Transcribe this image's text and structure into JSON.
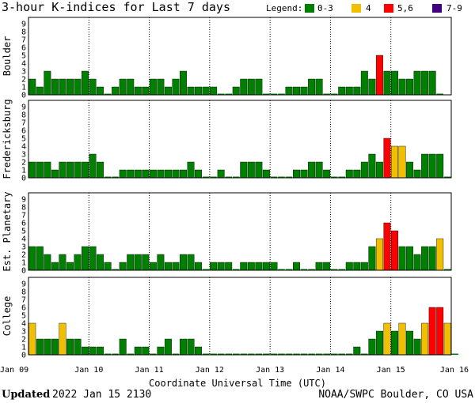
{
  "chart_data": {
    "type": "bar",
    "title": "3-hour K-indices for Last 7 days",
    "legend": {
      "label": "Legend:",
      "entries": [
        {
          "label": "0-3",
          "color": "#008000"
        },
        {
          "label": "4",
          "color": "#f0c000"
        },
        {
          "label": "5,6",
          "color": "#ff0000"
        },
        {
          "label": "7-9",
          "color": "#400080"
        }
      ]
    },
    "ylim": [
      0,
      9
    ],
    "yticks": [
      0,
      1,
      2,
      3,
      4,
      5,
      6,
      7,
      8,
      9
    ],
    "xticks": [
      "Jan 09",
      "Jan 10",
      "Jan 11",
      "Jan 12",
      "Jan 13",
      "Jan 14",
      "Jan 15",
      "Jan 16"
    ],
    "xlabel": "Coordinate Universal Time (UTC)",
    "intervals_per_day": 8,
    "grid": "dotted-vertical",
    "panels": [
      {
        "name": "Boulder",
        "values": [
          2,
          1,
          3,
          2,
          2,
          2,
          2,
          3,
          2,
          1,
          0,
          1,
          2,
          2,
          1,
          1,
          2,
          2,
          1,
          2,
          3,
          1,
          1,
          1,
          1,
          0,
          0,
          1,
          2,
          2,
          2,
          0,
          0,
          0,
          1,
          1,
          1,
          2,
          2,
          0,
          0,
          1,
          1,
          1,
          3,
          2,
          5,
          3,
          3,
          2,
          2,
          3,
          3,
          3,
          0
        ]
      },
      {
        "name": "Fredericksburg",
        "values": [
          2,
          2,
          2,
          1,
          2,
          2,
          2,
          2,
          3,
          2,
          0,
          0,
          1,
          1,
          1,
          1,
          1,
          1,
          1,
          1,
          1,
          2,
          1,
          0,
          0,
          1,
          0,
          0,
          2,
          2,
          2,
          1,
          0,
          0,
          0,
          1,
          1,
          2,
          2,
          1,
          0,
          0,
          1,
          1,
          2,
          3,
          2,
          5,
          4,
          4,
          2,
          1,
          3,
          3,
          3,
          0
        ]
      },
      {
        "name": "Est. Planetary",
        "values": [
          3,
          3,
          2,
          1,
          2,
          1,
          2,
          3,
          3,
          2,
          1,
          0,
          1,
          2,
          2,
          2,
          1,
          2,
          1,
          1,
          2,
          2,
          1,
          0,
          1,
          1,
          1,
          0,
          1,
          1,
          1,
          1,
          1,
          0,
          0,
          1,
          0,
          0,
          1,
          1,
          0,
          0,
          1,
          1,
          1,
          3,
          4,
          6,
          5,
          3,
          3,
          2,
          3,
          3,
          4,
          0
        ]
      },
      {
        "name": "College",
        "values": [
          4,
          2,
          2,
          2,
          4,
          2,
          2,
          1,
          1,
          1,
          0,
          0,
          2,
          0,
          1,
          1,
          0,
          1,
          2,
          0,
          2,
          2,
          1,
          0,
          0,
          0,
          0,
          0,
          0,
          0,
          0,
          0,
          0,
          0,
          0,
          0,
          0,
          0,
          0,
          0,
          0,
          0,
          0,
          1,
          0,
          2,
          3,
          4,
          3,
          4,
          3,
          2,
          4,
          6,
          6,
          4,
          0
        ]
      }
    ]
  },
  "footer": {
    "updated_label": "Updated",
    "updated_value": "2022 Jan 15 2130",
    "source": "NOAA/SWPC Boulder, CO USA"
  }
}
